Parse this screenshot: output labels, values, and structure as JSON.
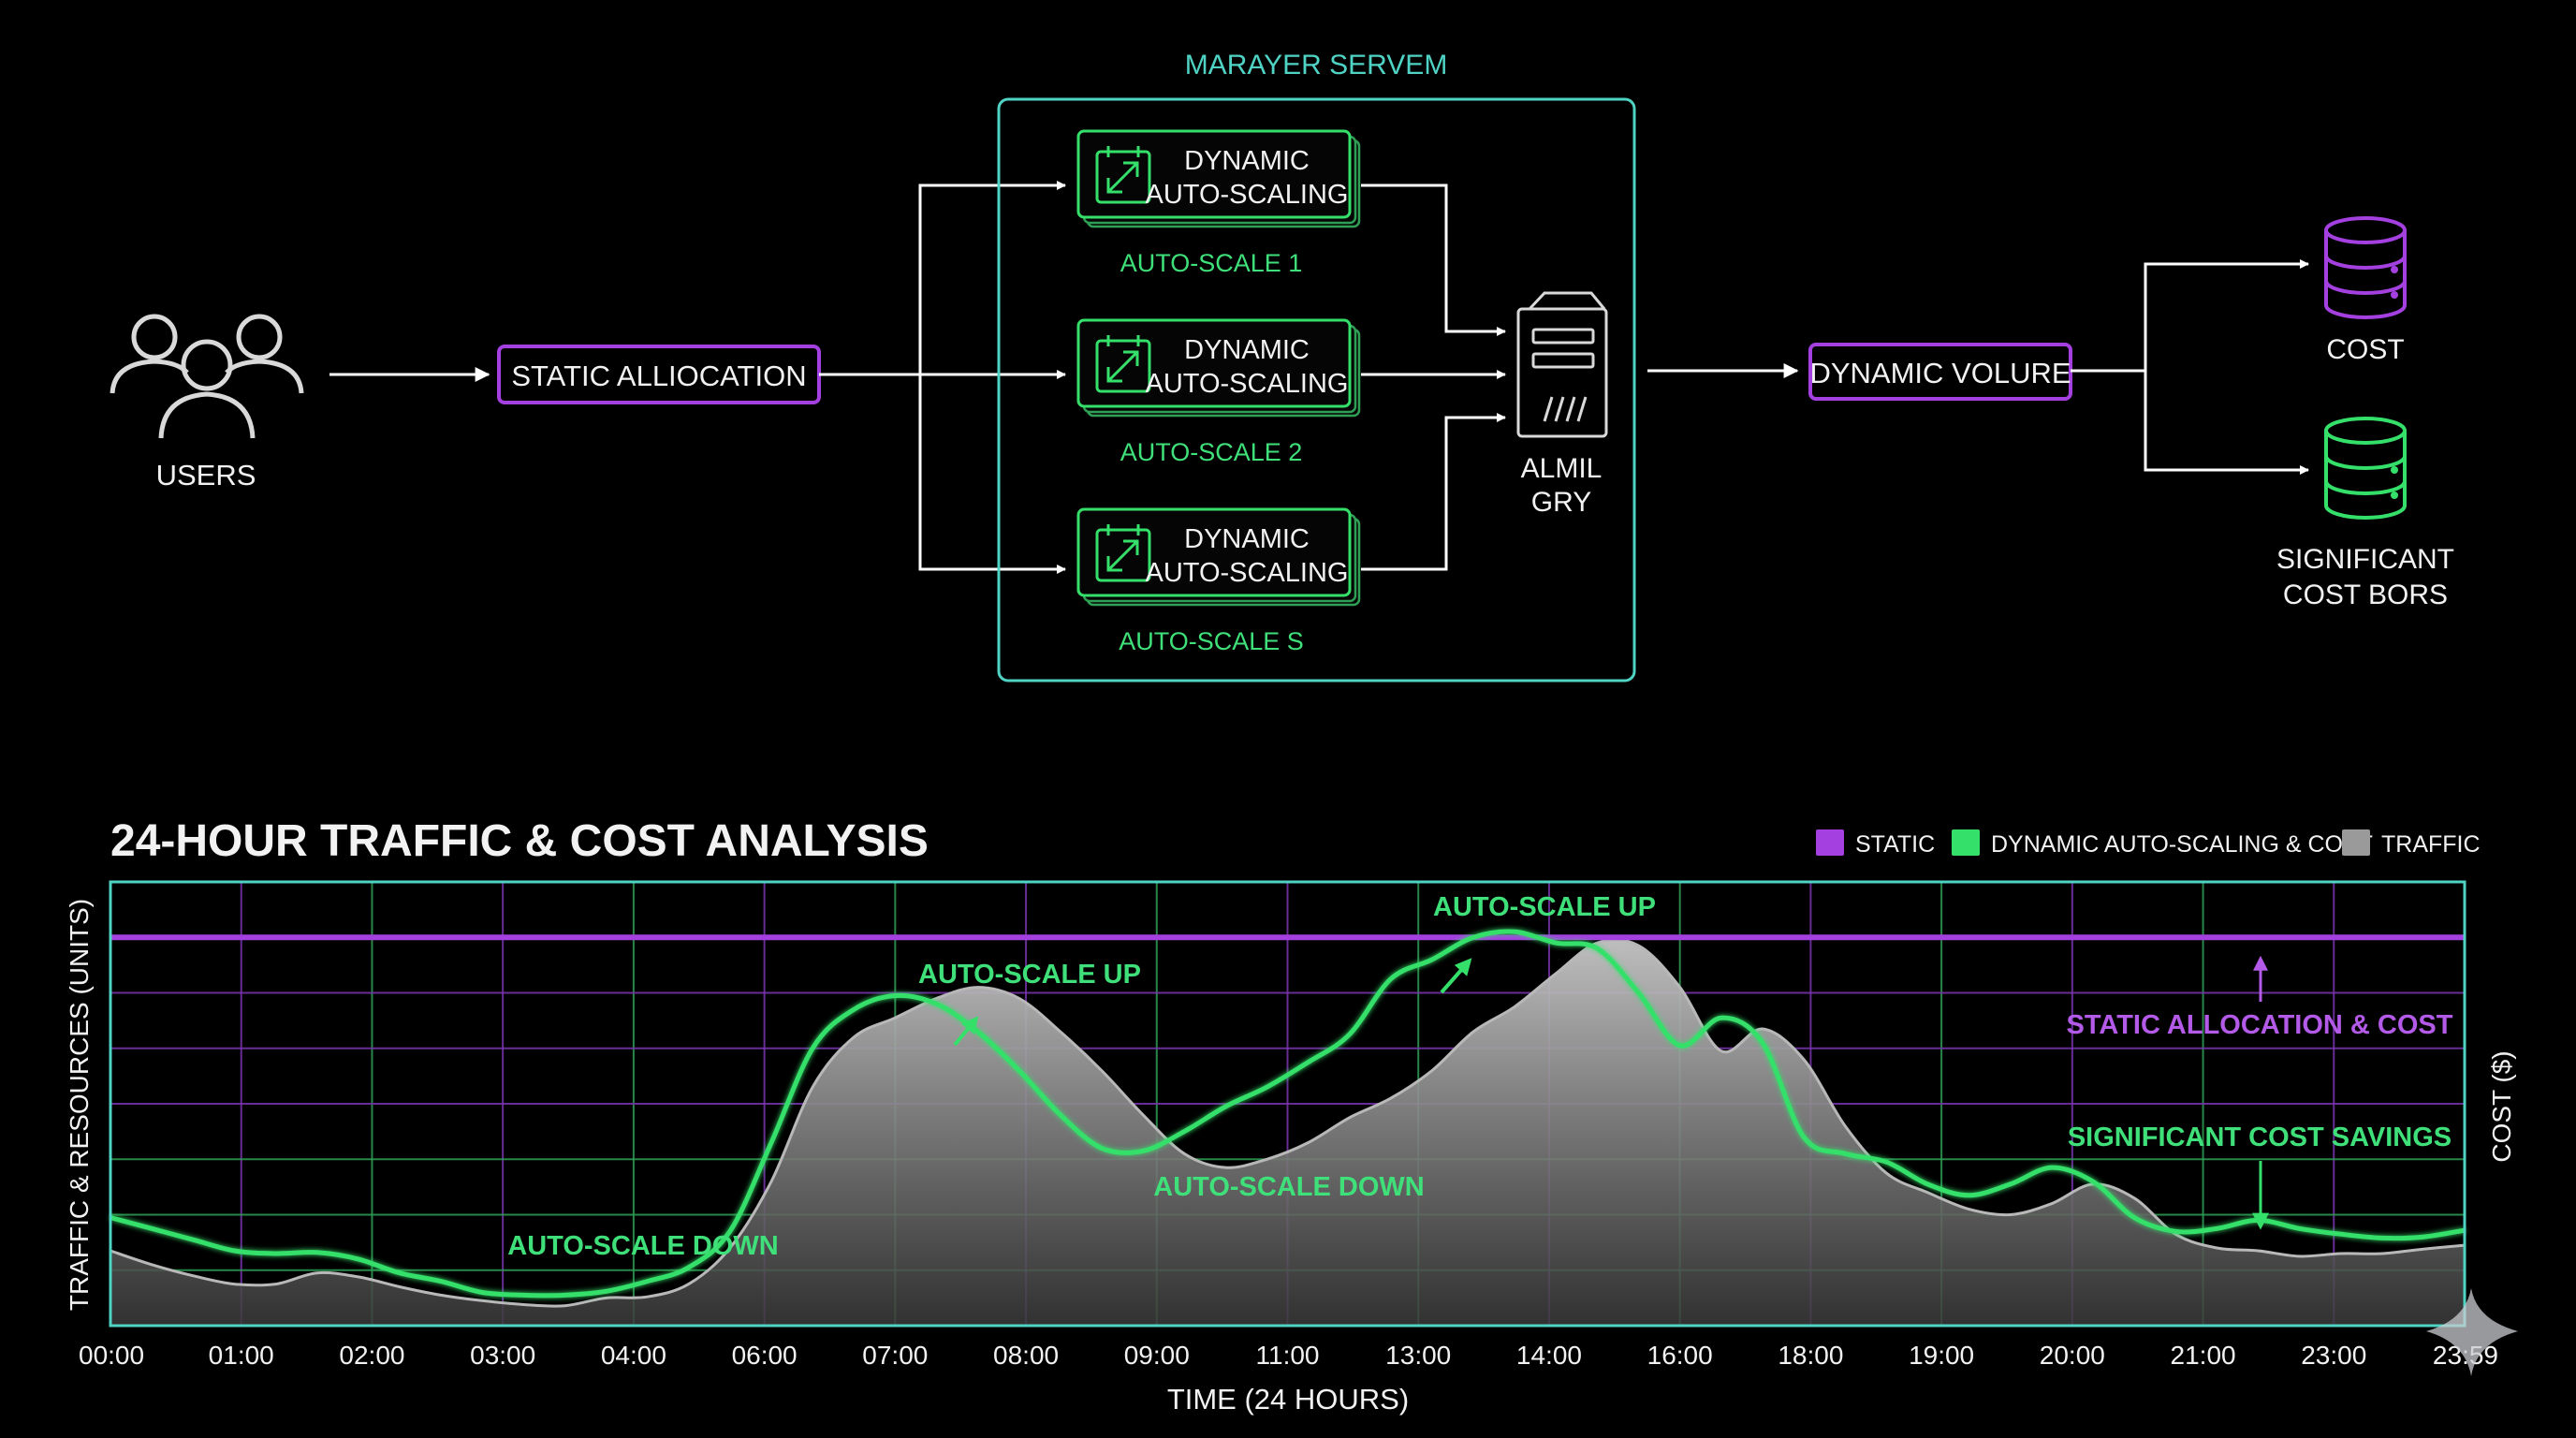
{
  "colors": {
    "background": "#000000",
    "static": "#a43fe0",
    "dynamic": "#35e06a",
    "traffic": "#9a9a9a",
    "teal_border": "#4fd3c4",
    "grid_purple": "#7a35b0",
    "grid_green": "#2f9f55",
    "label_green": "#3fe07a",
    "label_purple": "#b45ae8"
  },
  "diagram": {
    "users": {
      "label": "USERS",
      "icon": "users-icon"
    },
    "static_allocation": {
      "label": "STATIC ALLIOCATION"
    },
    "cluster": {
      "title": "MARAYER SERVEM",
      "nodes": [
        {
          "line1": "DYNAMIC",
          "line2": "AUTO-SCALING",
          "caption": "AUTO-SCALE 1",
          "icon": "resize-icon"
        },
        {
          "line1": "DYNAMIC",
          "line2": "AUTO-SCALING",
          "caption": "AUTO-SCALE 2",
          "icon": "resize-icon"
        },
        {
          "line1": "DYNAMIC",
          "line2": "AUTO-SCALING",
          "caption": "AUTO-SCALE S",
          "icon": "resize-icon"
        }
      ]
    },
    "server": {
      "line1": "ALMIL",
      "line2": "GRY",
      "icon": "server-icon"
    },
    "dynamic_volume": {
      "label": "DYNAMIC VOLURE"
    },
    "db_cost": {
      "label": "COST",
      "icon": "database-icon"
    },
    "db_savings": {
      "line1": "SIGNIFICANT",
      "line2": "COST BORS",
      "icon": "database-icon"
    }
  },
  "chart_data": {
    "type": "area",
    "title": "24-HOUR TRAFFIC & COST ANALYSIS",
    "xlabel": "TIME (24 HOURS)",
    "ylabel": "TRAFFIC & RESOURCES (UNITS)",
    "ylabel_right": "COST ($)",
    "x_ticks": [
      "00:00",
      "01:00",
      "02:00",
      "03:00",
      "04:00",
      "06:00",
      "07:00",
      "08:00",
      "09:00",
      "11:00",
      "13:00",
      "14:00",
      "16:00",
      "18:00",
      "19:00",
      "20:00",
      "21:00",
      "23:00",
      "23:59"
    ],
    "ylim": [
      0,
      8
    ],
    "grid": true,
    "legend_position": "top-right",
    "legend": [
      {
        "name": "STATIC",
        "color": "#a43fe0"
      },
      {
        "name": "DYNAMIC AUTO-SCALING & COST",
        "color": "#35e06a"
      },
      {
        "name": "TRAFFIC",
        "color": "#9a9a9a"
      }
    ],
    "static_level": 7.0,
    "series": [
      {
        "name": "TRAFFIC",
        "values": [
          1.35,
          1.1,
          0.9,
          0.75,
          0.75,
          0.95,
          0.88,
          0.7,
          0.55,
          0.45,
          0.38,
          0.36,
          0.5,
          0.52,
          0.75,
          1.4,
          2.6,
          4.3,
          5.2,
          5.55,
          5.9,
          6.1,
          5.9,
          5.3,
          4.6,
          3.8,
          3.1,
          2.85,
          3.0,
          3.3,
          3.75,
          4.1,
          4.6,
          5.3,
          5.75,
          6.35,
          6.9,
          6.85,
          6.1,
          4.95,
          5.35,
          4.8,
          3.6,
          2.75,
          2.4,
          2.1,
          2.0,
          2.2,
          2.55,
          2.3,
          1.65,
          1.4,
          1.35,
          1.25,
          1.3,
          1.3,
          1.38,
          1.45
        ]
      },
      {
        "name": "DYNAMIC AUTO-SCALING & COST",
        "values": [
          1.95,
          1.75,
          1.55,
          1.35,
          1.3,
          1.32,
          1.2,
          0.95,
          0.8,
          0.6,
          0.55,
          0.55,
          0.62,
          0.8,
          1.05,
          1.7,
          3.3,
          5.0,
          5.7,
          5.95,
          5.8,
          5.3,
          4.6,
          3.8,
          3.2,
          3.15,
          3.5,
          3.95,
          4.3,
          4.75,
          5.25,
          6.25,
          6.6,
          7.0,
          7.1,
          6.9,
          6.8,
          6.0,
          5.05,
          5.55,
          5.1,
          3.4,
          3.1,
          2.95,
          2.55,
          2.35,
          2.55,
          2.85,
          2.6,
          1.95,
          1.7,
          1.75,
          1.9,
          1.75,
          1.65,
          1.58,
          1.6,
          1.72
        ]
      }
    ],
    "annotations": [
      {
        "text": "AUTO-SCALE UP",
        "color": "green"
      },
      {
        "text": "AUTO-SCALE UP",
        "color": "green"
      },
      {
        "text": "AUTO-SCALE DOWN",
        "color": "green"
      },
      {
        "text": "AUTO-SCALE DOWN",
        "color": "green"
      },
      {
        "text": "STATIC ALLOCATION & COST",
        "color": "purple"
      },
      {
        "text": "SIGNIFICANT COST SAVINGS",
        "color": "green"
      }
    ]
  }
}
